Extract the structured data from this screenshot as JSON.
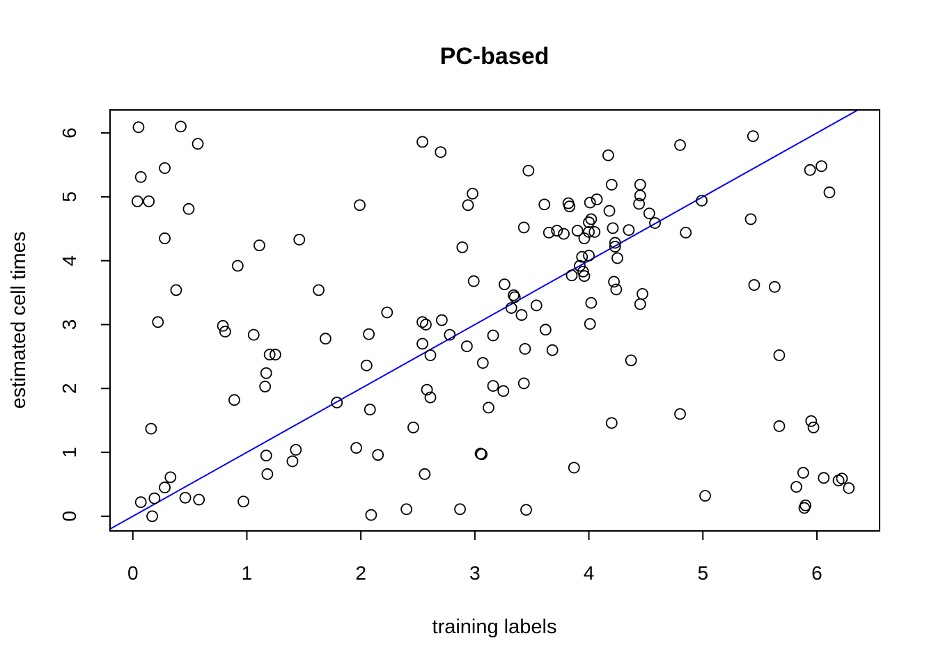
{
  "chart_data": {
    "type": "scatter",
    "title": "PC-based",
    "xlabel": "training labels",
    "ylabel": "estimated cell times",
    "xlim": [
      -0.2,
      6.55
    ],
    "ylim": [
      -0.23,
      6.36
    ],
    "xticks": [
      0,
      1,
      2,
      3,
      4,
      5,
      6
    ],
    "yticks": [
      0,
      1,
      2,
      3,
      4,
      5,
      6
    ],
    "grid": false,
    "legend": "none",
    "point_color": "#000000",
    "line_color": "#0000ff",
    "reference_line": {
      "slope": 1,
      "intercept": 0
    },
    "points": [
      [
        0.05,
        6.09
      ],
      [
        0.42,
        6.1
      ],
      [
        0.57,
        5.83
      ],
      [
        0.07,
        5.31
      ],
      [
        0.28,
        5.45
      ],
      [
        0.04,
        4.93
      ],
      [
        0.14,
        4.93
      ],
      [
        0.49,
        4.81
      ],
      [
        0.28,
        4.35
      ],
      [
        0.38,
        3.54
      ],
      [
        0.22,
        3.04
      ],
      [
        0.16,
        1.37
      ],
      [
        0.33,
        0.61
      ],
      [
        0.28,
        0.45
      ],
      [
        0.07,
        0.22
      ],
      [
        0.19,
        0.28
      ],
      [
        0.17,
        0.0
      ],
      [
        0.46,
        0.29
      ],
      [
        0.58,
        0.26
      ],
      [
        0.97,
        0.23
      ],
      [
        0.92,
        3.92
      ],
      [
        1.11,
        4.24
      ],
      [
        1.46,
        4.33
      ],
      [
        0.79,
        2.98
      ],
      [
        0.81,
        2.89
      ],
      [
        1.06,
        2.84
      ],
      [
        1.2,
        2.53
      ],
      [
        1.25,
        2.53
      ],
      [
        1.17,
        2.24
      ],
      [
        1.16,
        2.03
      ],
      [
        0.89,
        1.82
      ],
      [
        1.17,
        0.95
      ],
      [
        1.18,
        0.66
      ],
      [
        1.43,
        1.04
      ],
      [
        1.4,
        0.86
      ],
      [
        1.63,
        3.54
      ],
      [
        1.69,
        2.78
      ],
      [
        1.79,
        1.78
      ],
      [
        1.99,
        4.87
      ],
      [
        2.07,
        2.85
      ],
      [
        2.05,
        2.36
      ],
      [
        2.08,
        1.67
      ],
      [
        2.23,
        3.19
      ],
      [
        2.15,
        0.96
      ],
      [
        1.96,
        1.07
      ],
      [
        2.09,
        0.02
      ],
      [
        2.4,
        0.11
      ],
      [
        2.46,
        1.39
      ],
      [
        2.54,
        5.86
      ],
      [
        2.54,
        3.04
      ],
      [
        2.57,
        3.0
      ],
      [
        2.54,
        2.7
      ],
      [
        2.61,
        2.52
      ],
      [
        2.58,
        1.98
      ],
      [
        2.61,
        1.86
      ],
      [
        2.56,
        0.66
      ],
      [
        2.7,
        5.7
      ],
      [
        2.71,
        3.07
      ],
      [
        2.78,
        2.84
      ],
      [
        2.89,
        4.21
      ],
      [
        2.94,
        4.87
      ],
      [
        2.98,
        5.05
      ],
      [
        2.99,
        3.68
      ],
      [
        2.93,
        2.66
      ],
      [
        3.07,
        2.4
      ],
      [
        3.05,
        0.98
      ],
      [
        3.06,
        0.97
      ],
      [
        2.87,
        0.11
      ],
      [
        3.12,
        1.7
      ],
      [
        3.16,
        2.83
      ],
      [
        3.16,
        2.04
      ],
      [
        3.25,
        1.96
      ],
      [
        3.26,
        3.63
      ],
      [
        3.32,
        3.26
      ],
      [
        3.34,
        3.46
      ],
      [
        3.35,
        3.43
      ],
      [
        3.41,
        3.15
      ],
      [
        3.43,
        2.08
      ],
      [
        3.44,
        2.62
      ],
      [
        3.43,
        4.52
      ],
      [
        3.47,
        5.41
      ],
      [
        3.45,
        0.1
      ],
      [
        3.54,
        3.3
      ],
      [
        3.61,
        4.88
      ],
      [
        3.62,
        2.92
      ],
      [
        3.65,
        4.44
      ],
      [
        3.68,
        2.6
      ],
      [
        3.72,
        4.47
      ],
      [
        3.78,
        4.42
      ],
      [
        3.82,
        4.9
      ],
      [
        3.83,
        4.85
      ],
      [
        3.85,
        3.77
      ],
      [
        3.9,
        4.47
      ],
      [
        3.92,
        3.92
      ],
      [
        3.94,
        4.06
      ],
      [
        3.95,
        3.83
      ],
      [
        3.96,
        3.76
      ],
      [
        3.96,
        4.35
      ],
      [
        4.0,
        4.6
      ],
      [
        4.0,
        4.45
      ],
      [
        4.0,
        4.08
      ],
      [
        4.01,
        4.91
      ],
      [
        4.02,
        4.65
      ],
      [
        4.02,
        3.34
      ],
      [
        4.01,
        3.01
      ],
      [
        4.05,
        4.45
      ],
      [
        4.07,
        4.96
      ],
      [
        3.87,
        0.76
      ],
      [
        4.17,
        5.65
      ],
      [
        4.18,
        4.78
      ],
      [
        4.2,
        5.19
      ],
      [
        4.21,
        4.51
      ],
      [
        4.23,
        4.28
      ],
      [
        4.23,
        4.22
      ],
      [
        4.25,
        4.04
      ],
      [
        4.22,
        3.67
      ],
      [
        4.24,
        3.55
      ],
      [
        4.2,
        1.46
      ],
      [
        4.35,
        4.48
      ],
      [
        4.37,
        2.44
      ],
      [
        4.45,
        5.19
      ],
      [
        4.45,
        5.02
      ],
      [
        4.44,
        4.89
      ],
      [
        4.53,
        4.74
      ],
      [
        4.58,
        4.59
      ],
      [
        4.47,
        3.48
      ],
      [
        4.45,
        3.32
      ],
      [
        4.8,
        5.81
      ],
      [
        4.85,
        4.44
      ],
      [
        4.8,
        1.6
      ],
      [
        4.99,
        4.94
      ],
      [
        5.02,
        0.32
      ],
      [
        5.44,
        5.95
      ],
      [
        5.42,
        4.65
      ],
      [
        5.45,
        3.62
      ],
      [
        5.63,
        3.59
      ],
      [
        5.67,
        2.52
      ],
      [
        5.67,
        1.41
      ],
      [
        5.82,
        0.46
      ],
      [
        5.88,
        0.68
      ],
      [
        5.89,
        0.13
      ],
      [
        5.9,
        0.17
      ],
      [
        5.94,
        5.42
      ],
      [
        6.04,
        5.48
      ],
      [
        6.11,
        5.07
      ],
      [
        5.95,
        1.49
      ],
      [
        5.97,
        1.39
      ],
      [
        6.06,
        0.6
      ],
      [
        6.19,
        0.56
      ],
      [
        6.22,
        0.59
      ],
      [
        6.28,
        0.44
      ]
    ]
  }
}
